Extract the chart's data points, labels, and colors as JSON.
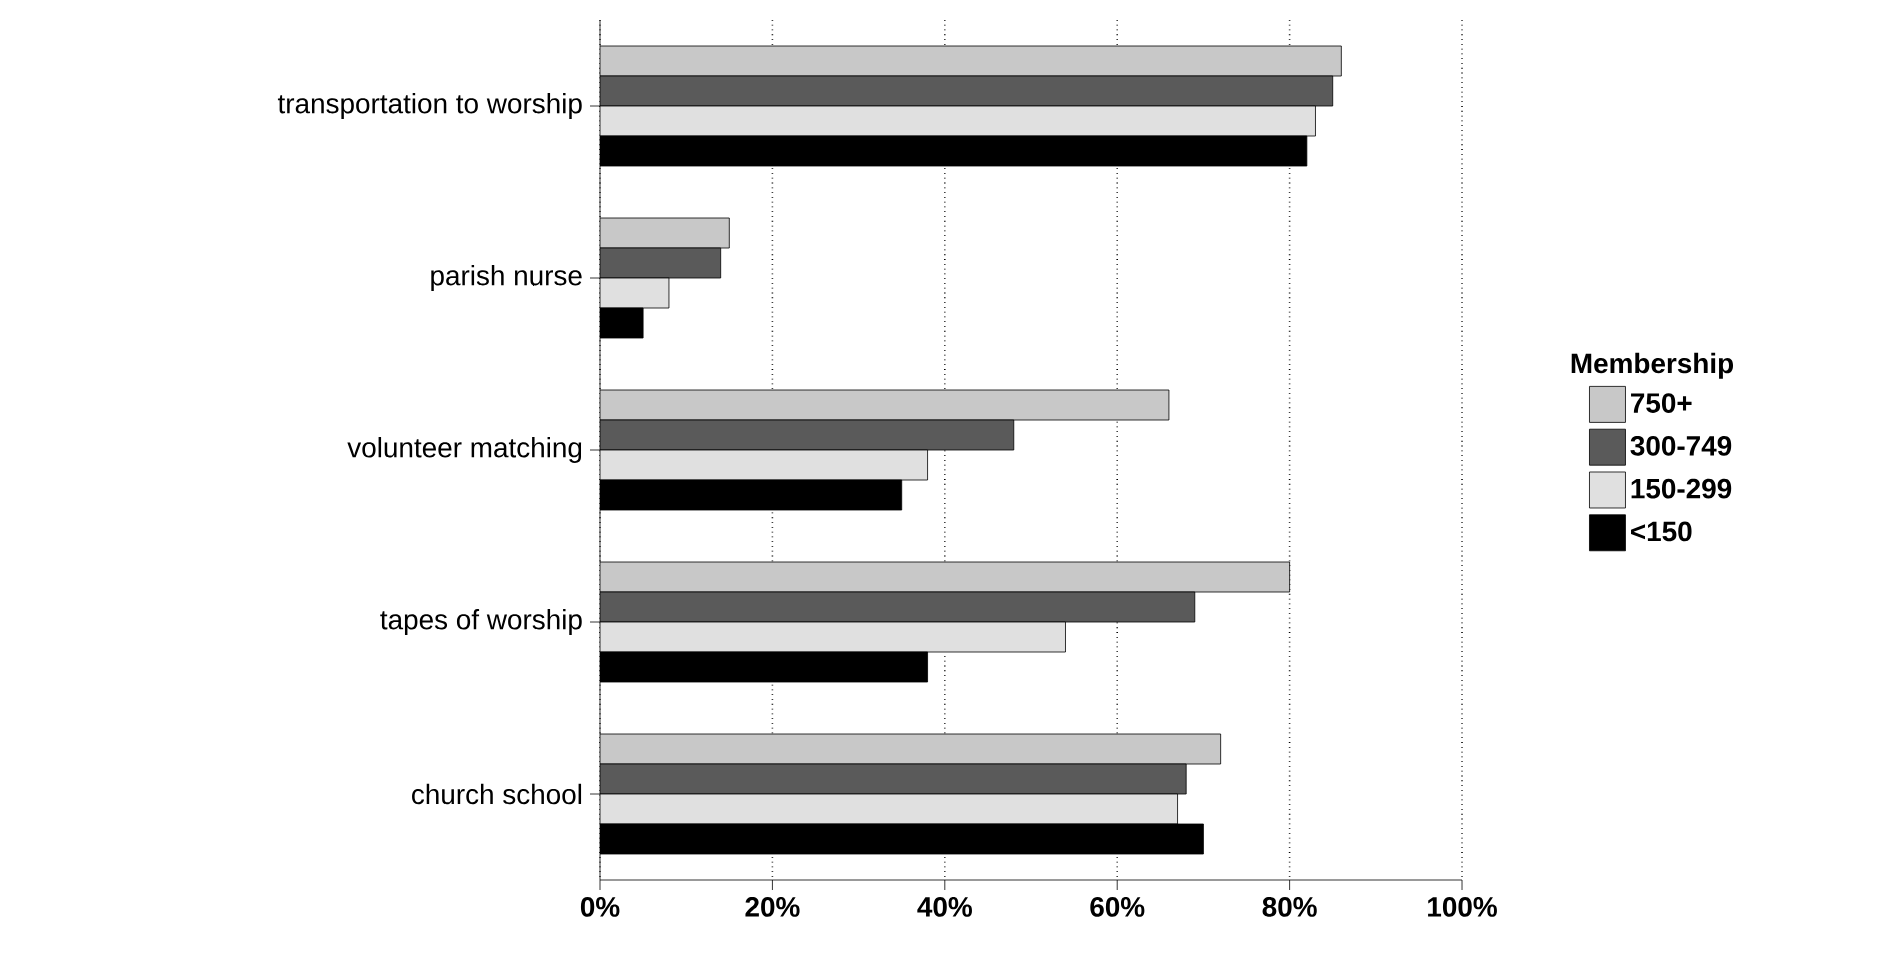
{
  "chart_data": {
    "type": "bar",
    "orientation": "horizontal",
    "categories": [
      "transportation to worship",
      "parish nurse",
      "volunteer matching",
      "tapes of worship",
      "church school"
    ],
    "series": [
      {
        "name": "750+",
        "color": "#c8c8c8",
        "values": [
          86,
          15,
          66,
          80,
          72
        ]
      },
      {
        "name": "300-749",
        "color": "#5a5a5a",
        "values": [
          85,
          14,
          48,
          69,
          68
        ]
      },
      {
        "name": "150-299",
        "color": "#e0e0e0",
        "values": [
          83,
          8,
          38,
          54,
          67
        ]
      },
      {
        "name": "<150",
        "color": "#000000",
        "values": [
          82,
          5,
          35,
          38,
          70
        ]
      }
    ],
    "legend_title": "Membership",
    "xlim": [
      0,
      100
    ],
    "xticks": [
      {
        "value": 0,
        "label": "0%"
      },
      {
        "value": 20,
        "label": "20%"
      },
      {
        "value": 40,
        "label": "40%"
      },
      {
        "value": 60,
        "label": "60%"
      },
      {
        "value": 80,
        "label": "80%"
      },
      {
        "value": 100,
        "label": "100%"
      }
    ],
    "grid": "x",
    "legend": "right"
  }
}
